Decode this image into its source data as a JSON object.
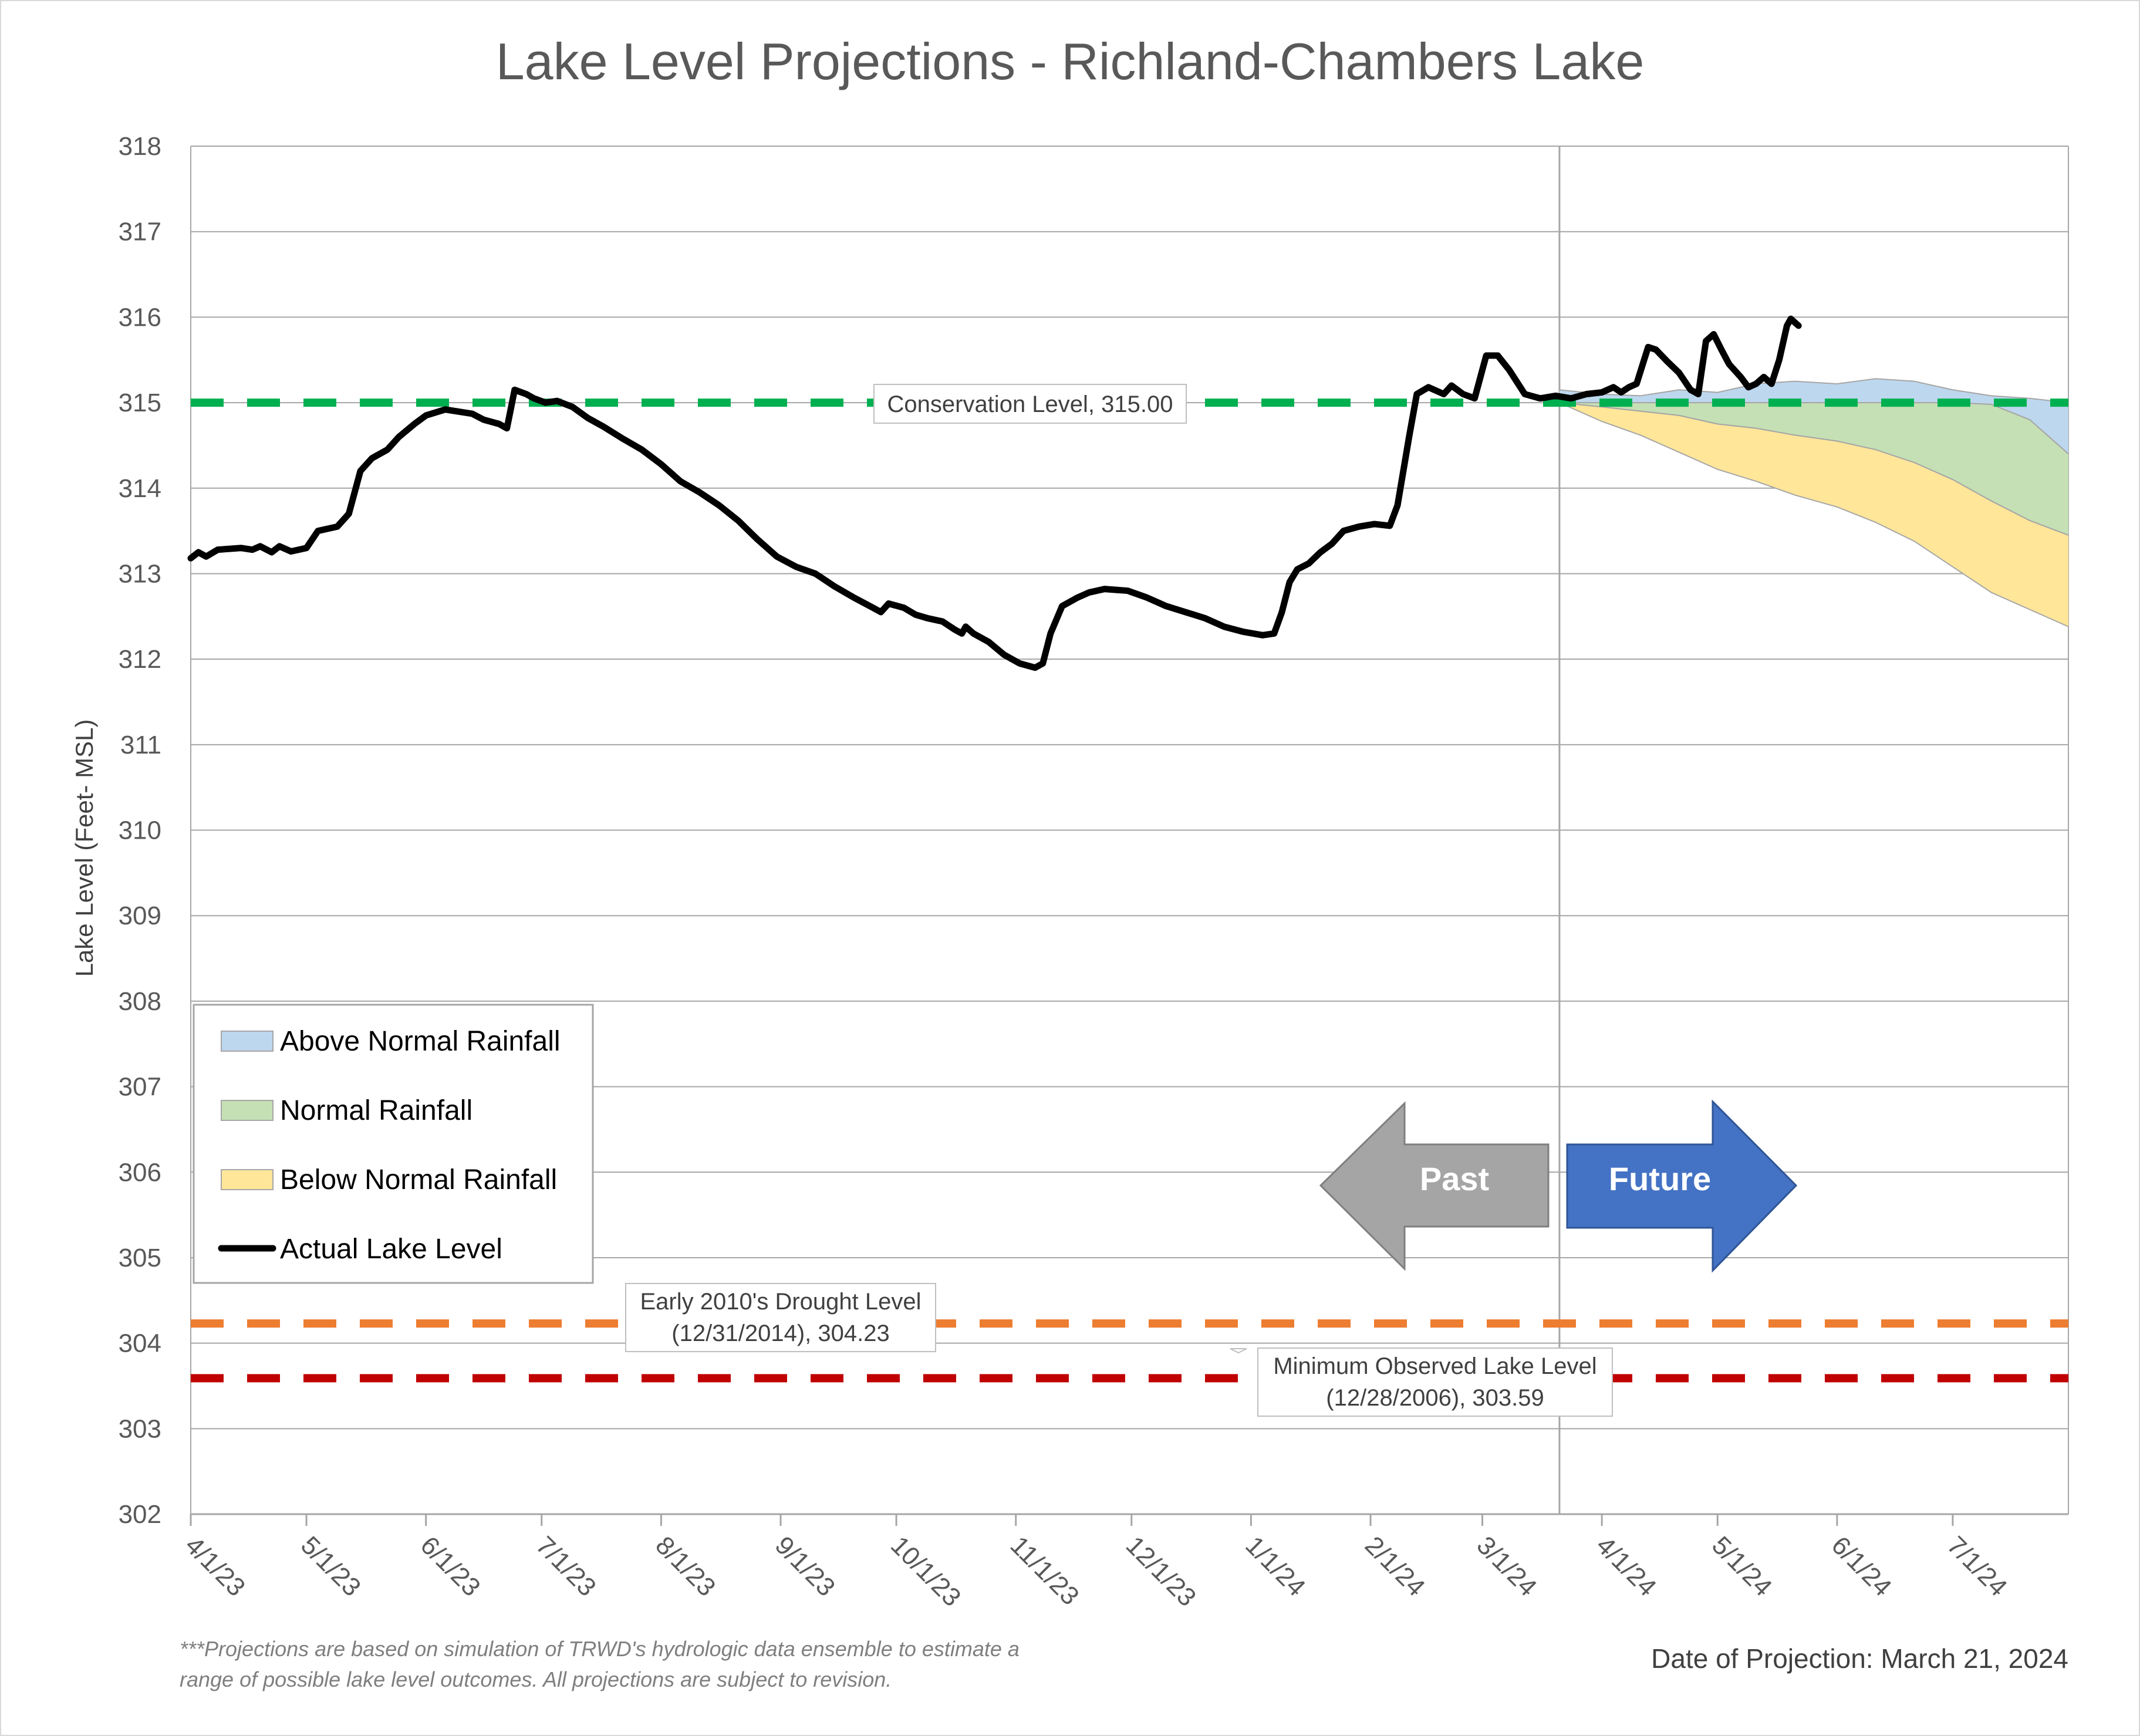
{
  "chart_data": {
    "type": "area",
    "title": "Lake Level Projections - Richland-Chambers Lake",
    "ylabel": "Lake Level (Feet- MSL)",
    "xlabel": "",
    "ylim": [
      302,
      318
    ],
    "xlim": [
      "2023-04-01",
      "2024-07-31"
    ],
    "y_ticks": [
      302,
      303,
      304,
      305,
      306,
      307,
      308,
      309,
      310,
      311,
      312,
      313,
      314,
      315,
      316,
      317,
      318
    ],
    "x_ticks": [
      {
        "date": "2023-04-01",
        "label": "4/1/23"
      },
      {
        "date": "2023-05-01",
        "label": "5/1/23"
      },
      {
        "date": "2023-06-01",
        "label": "6/1/23"
      },
      {
        "date": "2023-07-01",
        "label": "7/1/23"
      },
      {
        "date": "2023-08-01",
        "label": "8/1/23"
      },
      {
        "date": "2023-09-01",
        "label": "9/1/23"
      },
      {
        "date": "2023-10-01",
        "label": "10/1/23"
      },
      {
        "date": "2023-11-01",
        "label": "11/1/23"
      },
      {
        "date": "2023-12-01",
        "label": "12/1/23"
      },
      {
        "date": "2024-01-01",
        "label": "1/1/24"
      },
      {
        "date": "2024-02-01",
        "label": "2/1/24"
      },
      {
        "date": "2024-03-01",
        "label": "3/1/24"
      },
      {
        "date": "2024-04-01",
        "label": "4/1/24"
      },
      {
        "date": "2024-05-01",
        "label": "5/1/24"
      },
      {
        "date": "2024-06-01",
        "label": "6/1/24"
      },
      {
        "date": "2024-07-01",
        "label": "7/1/24"
      }
    ],
    "grid": "horizontal",
    "legend_position": "bottom-left",
    "projection_date": "2024-03-21",
    "series": [
      {
        "name": "Actual Lake Level",
        "color": "#000000",
        "type": "line",
        "points": [
          [
            "2023-04-01",
            313.18
          ],
          [
            "2023-04-03",
            313.25
          ],
          [
            "2023-04-05",
            313.2
          ],
          [
            "2023-04-08",
            313.28
          ],
          [
            "2023-04-14",
            313.3
          ],
          [
            "2023-04-17",
            313.28
          ],
          [
            "2023-04-19",
            313.32
          ],
          [
            "2023-04-22",
            313.25
          ],
          [
            "2023-04-24",
            313.32
          ],
          [
            "2023-04-27",
            313.26
          ],
          [
            "2023-05-01",
            313.3
          ],
          [
            "2023-05-04",
            313.5
          ],
          [
            "2023-05-09",
            313.55
          ],
          [
            "2023-05-12",
            313.7
          ],
          [
            "2023-05-15",
            314.2
          ],
          [
            "2023-05-18",
            314.35
          ],
          [
            "2023-05-22",
            314.45
          ],
          [
            "2023-05-25",
            314.6
          ],
          [
            "2023-05-29",
            314.75
          ],
          [
            "2023-06-01",
            314.85
          ],
          [
            "2023-06-06",
            314.92
          ],
          [
            "2023-06-13",
            314.87
          ],
          [
            "2023-06-16",
            314.8
          ],
          [
            "2023-06-20",
            314.75
          ],
          [
            "2023-06-22",
            314.7
          ],
          [
            "2023-06-24",
            315.15
          ],
          [
            "2023-06-27",
            315.1
          ],
          [
            "2023-06-29",
            315.05
          ],
          [
            "2023-07-02",
            315.0
          ],
          [
            "2023-07-05",
            315.02
          ],
          [
            "2023-07-09",
            314.95
          ],
          [
            "2023-07-13",
            314.82
          ],
          [
            "2023-07-17",
            314.72
          ],
          [
            "2023-07-22",
            314.58
          ],
          [
            "2023-07-27",
            314.45
          ],
          [
            "2023-08-01",
            314.28
          ],
          [
            "2023-08-06",
            314.08
          ],
          [
            "2023-08-11",
            313.95
          ],
          [
            "2023-08-16",
            313.8
          ],
          [
            "2023-08-21",
            313.62
          ],
          [
            "2023-08-26",
            313.4
          ],
          [
            "2023-08-31",
            313.2
          ],
          [
            "2023-09-05",
            313.08
          ],
          [
            "2023-09-10",
            313.0
          ],
          [
            "2023-09-15",
            312.85
          ],
          [
            "2023-09-20",
            312.72
          ],
          [
            "2023-09-25",
            312.6
          ],
          [
            "2023-09-27",
            312.55
          ],
          [
            "2023-09-29",
            312.65
          ],
          [
            "2023-10-03",
            312.6
          ],
          [
            "2023-10-06",
            312.52
          ],
          [
            "2023-10-09",
            312.48
          ],
          [
            "2023-10-13",
            312.44
          ],
          [
            "2023-10-16",
            312.35
          ],
          [
            "2023-10-18",
            312.3
          ],
          [
            "2023-10-19",
            312.38
          ],
          [
            "2023-10-21",
            312.3
          ],
          [
            "2023-10-25",
            312.2
          ],
          [
            "2023-10-29",
            312.05
          ],
          [
            "2023-11-02",
            311.95
          ],
          [
            "2023-11-06",
            311.9
          ],
          [
            "2023-11-08",
            311.95
          ],
          [
            "2023-11-10",
            312.3
          ],
          [
            "2023-11-13",
            312.62
          ],
          [
            "2023-11-17",
            312.72
          ],
          [
            "2023-11-20",
            312.78
          ],
          [
            "2023-11-24",
            312.82
          ],
          [
            "2023-11-30",
            312.8
          ],
          [
            "2023-12-05",
            312.72
          ],
          [
            "2023-12-10",
            312.62
          ],
          [
            "2023-12-15",
            312.55
          ],
          [
            "2023-12-20",
            312.48
          ],
          [
            "2023-12-25",
            312.38
          ],
          [
            "2023-12-30",
            312.32
          ],
          [
            "2024-01-04",
            312.28
          ],
          [
            "2024-01-07",
            312.3
          ],
          [
            "2024-01-09",
            312.55
          ],
          [
            "2024-01-11",
            312.9
          ],
          [
            "2024-01-13",
            313.05
          ],
          [
            "2024-01-16",
            313.12
          ],
          [
            "2024-01-19",
            313.25
          ],
          [
            "2024-01-22",
            313.35
          ],
          [
            "2024-01-25",
            313.5
          ],
          [
            "2024-01-29",
            313.55
          ],
          [
            "2024-02-02",
            313.58
          ],
          [
            "2024-02-06",
            313.56
          ],
          [
            "2024-02-08",
            313.8
          ],
          [
            "2024-02-11",
            314.6
          ],
          [
            "2024-02-13",
            315.1
          ],
          [
            "2024-02-16",
            315.18
          ],
          [
            "2024-02-20",
            315.1
          ],
          [
            "2024-02-22",
            315.2
          ],
          [
            "2024-02-25",
            315.1
          ],
          [
            "2024-02-28",
            315.05
          ],
          [
            "2024-03-02",
            315.55
          ],
          [
            "2024-03-05",
            315.55
          ],
          [
            "2024-03-08",
            315.38
          ],
          [
            "2024-03-12",
            315.1
          ],
          [
            "2024-03-16",
            315.05
          ],
          [
            "2024-03-20",
            315.08
          ],
          [
            "2024-03-24",
            315.05
          ],
          [
            "2024-03-28",
            315.1
          ],
          [
            "2024-04-01",
            315.12
          ],
          [
            "2024-04-04",
            315.18
          ],
          [
            "2024-04-06",
            315.12
          ],
          [
            "2024-04-08",
            315.18
          ],
          [
            "2024-04-10",
            315.22
          ],
          [
            "2024-04-13",
            315.65
          ],
          [
            "2024-04-15",
            315.62
          ],
          [
            "2024-04-18",
            315.48
          ],
          [
            "2024-04-21",
            315.35
          ],
          [
            "2024-04-24",
            315.15
          ],
          [
            "2024-04-26",
            315.1
          ],
          [
            "2024-04-28",
            315.72
          ],
          [
            "2024-04-30",
            315.8
          ],
          [
            "2024-05-02",
            315.62
          ],
          [
            "2024-05-04",
            315.45
          ],
          [
            "2024-05-07",
            315.3
          ],
          [
            "2024-05-09",
            315.18
          ],
          [
            "2024-05-11",
            315.22
          ],
          [
            "2024-05-13",
            315.3
          ],
          [
            "2024-05-15",
            315.22
          ],
          [
            "2024-05-17",
            315.5
          ],
          [
            "2024-05-19",
            315.9
          ],
          [
            "2024-05-20",
            315.98
          ],
          [
            "2024-05-22",
            315.9
          ]
        ]
      },
      {
        "name": "Above Normal Rainfall",
        "color": "#bdd7ee",
        "border": "#a6a6a6",
        "type": "area",
        "x": [
          "2024-03-21",
          "2024-04-01",
          "2024-04-11",
          "2024-04-21",
          "2024-05-01",
          "2024-05-11",
          "2024-05-21",
          "2024-06-01",
          "2024-06-11",
          "2024-06-21",
          "2024-07-01",
          "2024-07-11",
          "2024-07-21",
          "2024-07-31"
        ],
        "lower": [
          315.0,
          315.0,
          315.0,
          315.0,
          315.0,
          315.0,
          315.0,
          315.0,
          315.0,
          315.0,
          315.0,
          314.98,
          314.8,
          314.4
        ],
        "upper": [
          315.15,
          315.1,
          315.08,
          315.15,
          315.12,
          315.22,
          315.25,
          315.22,
          315.28,
          315.25,
          315.15,
          315.08,
          315.05,
          315.0
        ]
      },
      {
        "name": "Normal Rainfall",
        "color": "#c5e0b4",
        "border": "#a6a6a6",
        "type": "area",
        "x": [
          "2024-03-21",
          "2024-04-01",
          "2024-04-11",
          "2024-04-21",
          "2024-05-01",
          "2024-05-11",
          "2024-05-21",
          "2024-06-01",
          "2024-06-11",
          "2024-06-21",
          "2024-07-01",
          "2024-07-11",
          "2024-07-21",
          "2024-07-31"
        ],
        "lower": [
          315.0,
          314.95,
          314.9,
          314.85,
          314.75,
          314.7,
          314.62,
          314.55,
          314.45,
          314.3,
          314.1,
          313.85,
          313.62,
          313.45
        ],
        "upper": [
          315.0,
          315.0,
          315.0,
          315.0,
          315.0,
          315.0,
          315.0,
          315.0,
          315.0,
          315.0,
          315.0,
          314.98,
          314.8,
          314.4
        ]
      },
      {
        "name": "Below Normal Rainfall",
        "color": "#ffe699",
        "border": "#a6a6a6",
        "type": "area",
        "x": [
          "2024-03-21",
          "2024-04-01",
          "2024-04-11",
          "2024-04-21",
          "2024-05-01",
          "2024-05-11",
          "2024-05-21",
          "2024-06-01",
          "2024-06-11",
          "2024-06-21",
          "2024-07-01",
          "2024-07-11",
          "2024-07-21",
          "2024-07-31"
        ],
        "lower": [
          315.0,
          314.78,
          314.62,
          314.42,
          314.22,
          314.08,
          313.92,
          313.78,
          313.6,
          313.38,
          313.08,
          312.78,
          312.58,
          312.38
        ],
        "upper": [
          315.0,
          314.95,
          314.9,
          314.85,
          314.75,
          314.7,
          314.62,
          314.55,
          314.45,
          314.3,
          314.1,
          313.85,
          313.62,
          313.45
        ]
      }
    ],
    "reference_lines": [
      {
        "label_line1": "Conservation Level, 315.00",
        "label_line2": "",
        "value": 315.0,
        "color": "#00b050"
      },
      {
        "label_line1": "Early 2010's Drought Level",
        "label_line2": "(12/31/2014), 304.23",
        "value": 304.23,
        "color": "#ed7d31"
      },
      {
        "label_line1": "Minimum Observed Lake Level",
        "label_line2": "(12/28/2006), 303.59",
        "value": 303.59,
        "color": "#c00000"
      }
    ],
    "arrows": {
      "past_label": "Past",
      "future_label": "Future",
      "past_color": "#a5a5a5",
      "future_color": "#4472c4"
    }
  },
  "legend": {
    "items": [
      {
        "label": "Above Normal Rainfall",
        "kind": "area",
        "color": "#bdd7ee"
      },
      {
        "label": "Normal Rainfall",
        "kind": "area",
        "color": "#c5e0b4"
      },
      {
        "label": "Below Normal Rainfall",
        "kind": "area",
        "color": "#ffe699"
      },
      {
        "label": "Actual Lake Level",
        "kind": "line",
        "color": "#000000"
      }
    ]
  },
  "footnote": {
    "line1": "***Projections are based on simulation of TRWD's hydrologic data ensemble to estimate a",
    "line2": "range of possible lake level outcomes.  All projections are subject to revision."
  },
  "projection_date_label": "Date of Projection: March 21, 2024"
}
